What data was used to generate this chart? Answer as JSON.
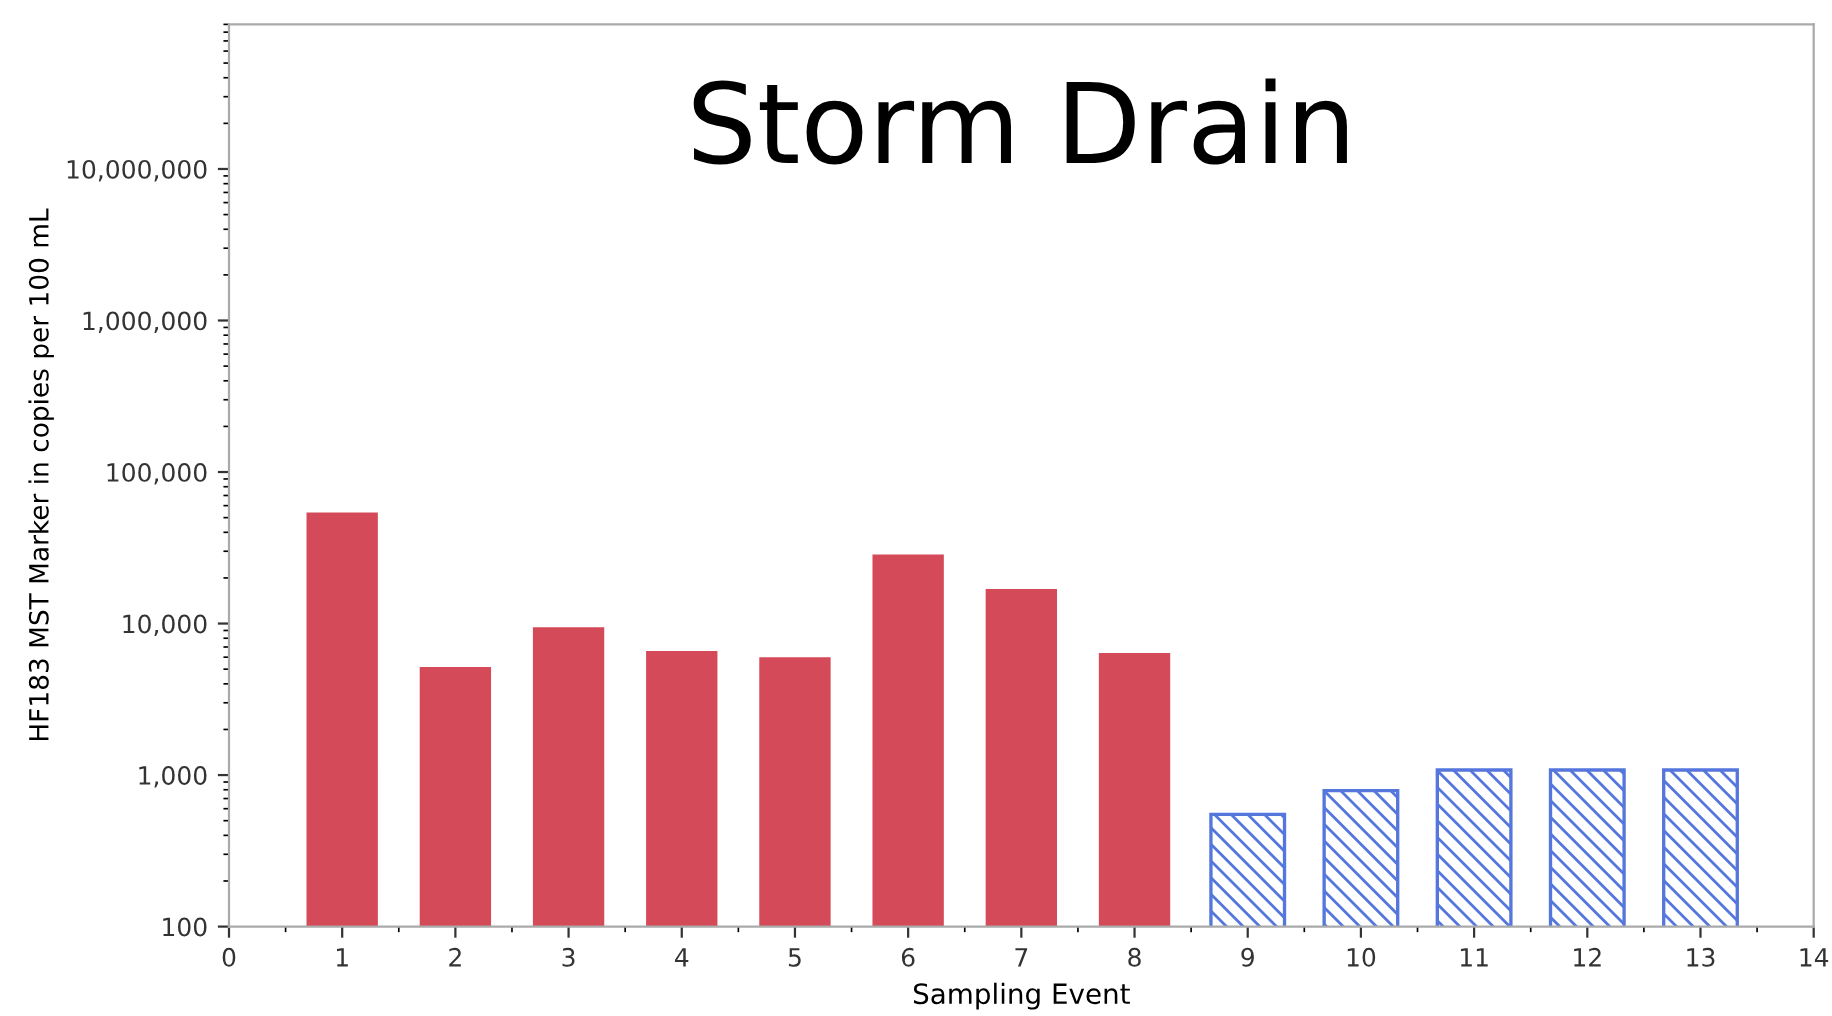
{
  "chart_data": {
    "type": "bar",
    "title": "Storm Drain",
    "xlabel": "Sampling Event",
    "ylabel": "HF183 MST Marker in copies per 100 mL",
    "series": [
      {
        "color": "#d44a58",
        "x": [
          1,
          2,
          3,
          4,
          5,
          6,
          7,
          8
        ],
        "values": [
          55000,
          5250,
          9600,
          6700,
          6100,
          29000,
          17200,
          6500
        ]
      },
      {
        "color": "#5577dd",
        "x": [
          9,
          10,
          11,
          12,
          13
        ],
        "values": [
          550,
          790,
          1080,
          1080,
          1080
        ]
      }
    ],
    "log": true,
    "xlim": [
      0,
      14
    ],
    "xticks": [
      0,
      1,
      2,
      3,
      4,
      5,
      6,
      7,
      8,
      9,
      10,
      11,
      12,
      13,
      14
    ],
    "ylim": [
      100,
      90000000
    ],
    "yticks": [
      {
        "value": 100,
        "label": "100"
      },
      {
        "value": 1000,
        "label": "1,000"
      },
      {
        "value": 10000,
        "label": "10,000"
      },
      {
        "value": 100000,
        "label": "100,000"
      },
      {
        "value": 1000000,
        "label": "1,000,000"
      },
      {
        "value": 10000000,
        "label": "10,000,000"
      }
    ],
    "grid": false,
    "legend": false
  }
}
